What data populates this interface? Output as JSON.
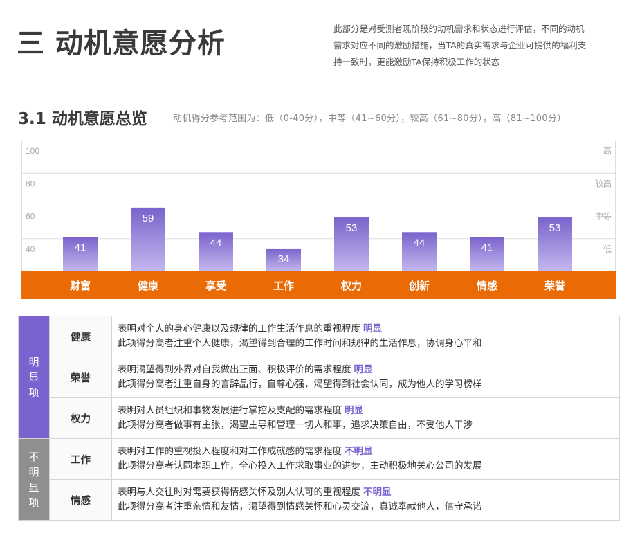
{
  "header": {
    "title": "三 动机意愿分析",
    "intro": [
      "此部分是对受测者现阶段的动机需求和状态进行评估，不同的动机",
      "需求对应不同的激励措施，当TA的真实需求与企业可提供的福利支",
      "持一致时，更能激励TA保持积极工作的状态"
    ]
  },
  "section": {
    "title": "3.1 动机意愿总览",
    "range_note": "动机得分参考范围为：低（0-40分），中等（41~60分），较高（61~80分），高（81~100分）"
  },
  "chart_data": {
    "type": "bar",
    "categories": [
      "财富",
      "健康",
      "享受",
      "工作",
      "权力",
      "创新",
      "情感",
      "荣誉"
    ],
    "values": [
      41,
      59,
      44,
      34,
      53,
      44,
      41,
      53
    ],
    "ylim": [
      20,
      100
    ],
    "y_ticks": [
      "40",
      "60",
      "80",
      "100"
    ],
    "level_labels": [
      "低",
      "中等",
      "较高",
      "高"
    ],
    "grid": true,
    "colors": {
      "bar_top": "#7a63cc",
      "bar_bottom": "#c4b8ee",
      "band": "#ea6a05",
      "grid": "#dddddd",
      "tick": "#aaaaaa",
      "value_label": "#ffffff"
    }
  },
  "table": {
    "groups": [
      {
        "label": "明显项",
        "rows": [
          {
            "factor": "健康",
            "line1": "表明对个人的身心健康以及规律的工作生活作息的重视程度",
            "level": "明显",
            "line2": "此项得分高者注重个人健康，渴望得到合理的工作时间和规律的生活作息，协调身心平和"
          },
          {
            "factor": "荣誉",
            "line1": "表明渴望得到外界对自我做出正面、积极评价的需求程度",
            "level": "明显",
            "line2": "此项得分高者注重自身的言辞品行，自尊心强，渴望得到社会认同，成为他人的学习榜样"
          },
          {
            "factor": "权力",
            "line1": "表明对人员组织和事物发展进行掌控及支配的需求程度",
            "level": "明显",
            "line2": "此项得分高者做事有主张，渴望主导和管理一切人和事，追求决策自由，不受他人干涉"
          }
        ]
      },
      {
        "label": "不明显项",
        "rows": [
          {
            "factor": "工作",
            "line1": "表明对工作的重视投入程度和对工作成就感的需求程度",
            "level": "不明显",
            "line2": "此项得分高者认同本职工作，全心投入工作求取事业的进步，主动积极地关心公司的发展"
          },
          {
            "factor": "情感",
            "line1": "表明与人交往时对需要获得情感关怀及别人认可的重视程度",
            "level": "不明显",
            "line2": "此项得分高者注重亲情和友情，渴望得到情感关怀和心灵交流，真诚奉献他人，信守承诺"
          }
        ]
      }
    ]
  }
}
